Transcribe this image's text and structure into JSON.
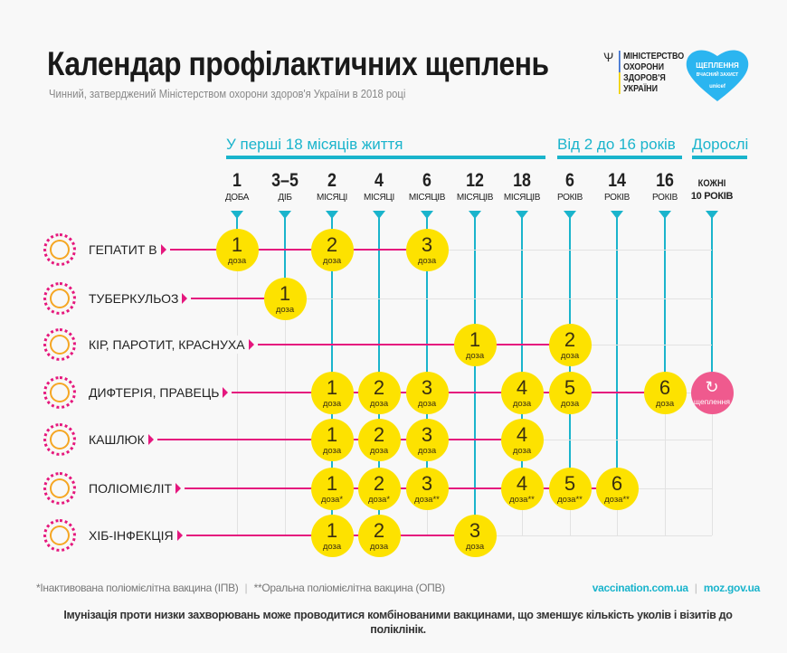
{
  "header": {
    "title": "Календар профілактичних щеплень",
    "subtitle": "Чинний, затверджений Міністерством охорони здоров'я України в 2018 році",
    "ministry": [
      "МІНІСТЕРСТВО",
      "ОХОРОНИ",
      "ЗДОРОВ'Я",
      "УКРАЇНИ"
    ],
    "badge": {
      "line1": "ЩЕПЛЕННЯ",
      "line2": "ВЧАСНИЙ ЗАХИСТ",
      "line3": "unicef"
    }
  },
  "groups": [
    {
      "label": "У перші 18 місяців життя"
    },
    {
      "label": "Від 2 до 16 років"
    },
    {
      "label": "Дорослі"
    }
  ],
  "columns": [
    {
      "n": "1",
      "u": "ДОБА"
    },
    {
      "n": "3–5",
      "u": "ДІБ"
    },
    {
      "n": "2",
      "u": "МІСЯЦІ"
    },
    {
      "n": "4",
      "u": "МІСЯЦІ"
    },
    {
      "n": "6",
      "u": "МІСЯЦІВ"
    },
    {
      "n": "12",
      "u": "МІСЯЦІВ"
    },
    {
      "n": "18",
      "u": "МІСЯЦІВ"
    },
    {
      "n": "6",
      "u": "РОКІВ"
    },
    {
      "n": "14",
      "u": "РОКІВ"
    },
    {
      "n": "16",
      "u": "РОКІВ"
    },
    {
      "n": "КОЖНІ",
      "u": "10 РОКІВ"
    }
  ],
  "dose_label": "доза",
  "booster_label": "щеплення",
  "colors": {
    "accent": "#1ab4cc",
    "magenta": "#e5177e",
    "dose": "#fde200",
    "booster": "#ef5a8e"
  },
  "rows": [
    {
      "name": "ГЕПАТИТ В",
      "icon": "hepatitis-virus-icon",
      "doses": [
        {
          "col": 0,
          "n": "1"
        },
        {
          "col": 2,
          "n": "2"
        },
        {
          "col": 4,
          "n": "3"
        }
      ]
    },
    {
      "name": "ТУБЕРКУЛЬОЗ",
      "icon": "tuberculosis-bacteria-icon",
      "doses": [
        {
          "col": 1,
          "n": "1"
        }
      ]
    },
    {
      "name": "КІР, ПАРОТИТ, КРАСНУХА",
      "icon": "measles-virus-icon",
      "doses": [
        {
          "col": 5,
          "n": "1"
        },
        {
          "col": 7,
          "n": "2"
        }
      ]
    },
    {
      "name": "ДИФТЕРІЯ, ПРАВЕЦЬ",
      "icon": "diphtheria-bacteria-icon",
      "doses": [
        {
          "col": 2,
          "n": "1"
        },
        {
          "col": 3,
          "n": "2"
        },
        {
          "col": 4,
          "n": "3"
        },
        {
          "col": 6,
          "n": "4"
        },
        {
          "col": 7,
          "n": "5"
        },
        {
          "col": 9,
          "n": "6"
        }
      ],
      "booster_col": 10
    },
    {
      "name": "КАШЛЮК",
      "icon": "pertussis-bacteria-icon",
      "doses": [
        {
          "col": 2,
          "n": "1"
        },
        {
          "col": 3,
          "n": "2"
        },
        {
          "col": 4,
          "n": "3"
        },
        {
          "col": 6,
          "n": "4"
        }
      ]
    },
    {
      "name": "ПОЛІОМІЄЛІТ",
      "icon": "polio-virus-icon",
      "doses": [
        {
          "col": 2,
          "n": "1",
          "mark": "*"
        },
        {
          "col": 3,
          "n": "2",
          "mark": "*"
        },
        {
          "col": 4,
          "n": "3",
          "mark": "**"
        },
        {
          "col": 6,
          "n": "4",
          "mark": "**"
        },
        {
          "col": 7,
          "n": "5",
          "mark": "**"
        },
        {
          "col": 8,
          "n": "6",
          "mark": "**"
        }
      ]
    },
    {
      "name": "ХІБ-ІНФЕКЦІЯ",
      "icon": "hib-bacteria-icon",
      "doses": [
        {
          "col": 2,
          "n": "1"
        },
        {
          "col": 3,
          "n": "2"
        },
        {
          "col": 5,
          "n": "3"
        }
      ]
    }
  ],
  "footer": {
    "ipv": "*Інактивована поліомієлітна вакцина (ІПВ)",
    "opv": "**Оральна поліомієлітна вакцина (ОПВ)",
    "link1": "vaccination.com.ua",
    "link2": "moz.gov.ua",
    "sep": "|",
    "note": "Імунізація проти низки захворювань може проводитися комбінованими вакцинами, що зменшує кількість уколів і візитів до поліклінік."
  }
}
